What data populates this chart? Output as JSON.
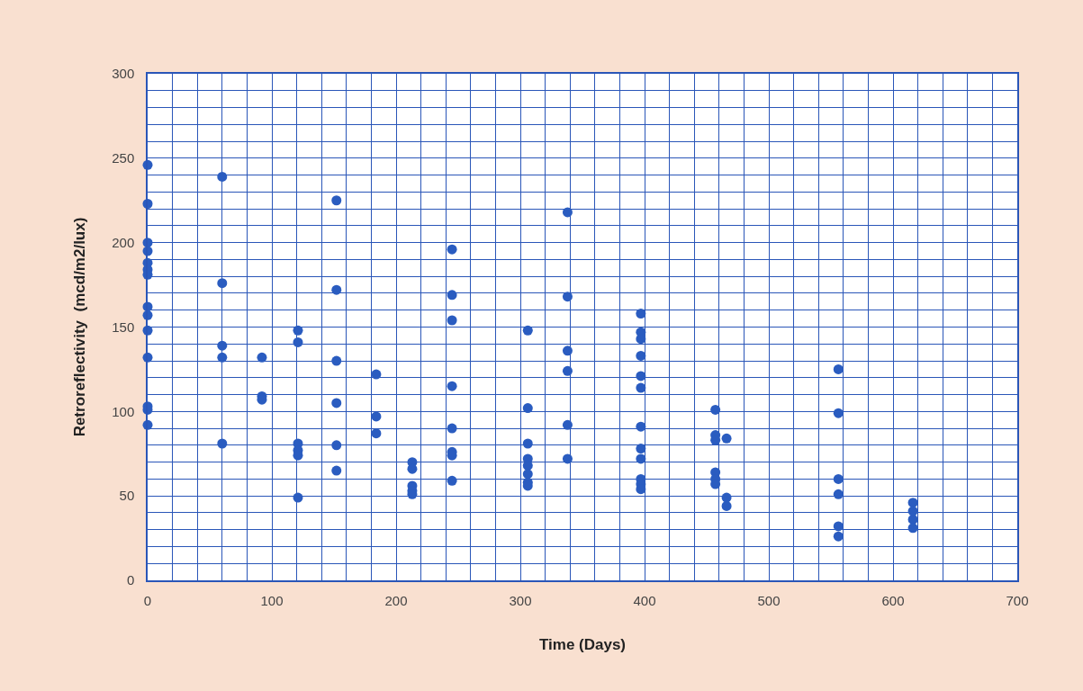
{
  "chart_data": {
    "type": "scatter",
    "xlabel": "Time (Days)",
    "ylabel": "Retroreflectivity  (mcd/m2/lux)",
    "x": [
      0,
      0,
      0,
      0,
      0,
      0,
      0,
      0,
      0,
      0,
      0,
      0,
      0,
      0,
      60,
      60,
      60,
      60,
      60,
      92,
      92,
      92,
      121,
      121,
      121,
      121,
      121,
      121,
      152,
      152,
      152,
      152,
      152,
      152,
      184,
      184,
      184,
      213,
      213,
      213,
      213,
      213,
      245,
      245,
      245,
      245,
      245,
      245,
      245,
      245,
      306,
      306,
      306,
      306,
      306,
      306,
      306,
      306,
      338,
      338,
      338,
      338,
      338,
      338,
      397,
      397,
      397,
      397,
      397,
      397,
      397,
      397,
      397,
      397,
      397,
      397,
      457,
      457,
      457,
      457,
      457,
      457,
      466,
      466,
      466,
      556,
      556,
      556,
      556,
      556,
      556,
      616,
      616,
      616,
      616
    ],
    "values": [
      246,
      223,
      200,
      195,
      188,
      184,
      181,
      162,
      157,
      148,
      132,
      103,
      101,
      92,
      239,
      176,
      139,
      132,
      81,
      132,
      109,
      107,
      148,
      141,
      81,
      77,
      74,
      49,
      225,
      172,
      130,
      105,
      80,
      65,
      122,
      97,
      87,
      70,
      66,
      56,
      53,
      51,
      196,
      169,
      154,
      115,
      90,
      76,
      74,
      59,
      148,
      102,
      81,
      72,
      68,
      63,
      58,
      56,
      218,
      168,
      136,
      124,
      92,
      72,
      158,
      147,
      143,
      133,
      121,
      114,
      91,
      78,
      72,
      60,
      57,
      54,
      101,
      86,
      83,
      64,
      60,
      57,
      84,
      49,
      44,
      125,
      99,
      60,
      51,
      32,
      26,
      46,
      41,
      36,
      31
    ],
    "color": "#2a5cc0",
    "marker": "circle",
    "xlim": [
      0,
      700
    ],
    "ylim": [
      0,
      300
    ],
    "xticks": [
      0,
      {
        "value": 20,
        "label": null
      },
      {
        "value": 40,
        "label": null
      },
      {
        "value": 60,
        "label": null
      },
      {
        "value": 80,
        "label": null
      },
      100,
      {
        "value": 120,
        "label": null
      },
      {
        "value": 140,
        "label": null
      },
      {
        "value": 160,
        "label": null
      },
      {
        "value": 180,
        "label": null
      },
      200,
      {
        "value": 220,
        "label": null
      },
      {
        "value": 240,
        "label": null
      },
      {
        "value": 260,
        "label": null
      },
      {
        "value": 280,
        "label": null
      },
      300,
      {
        "value": 320,
        "label": null
      },
      {
        "value": 340,
        "label": null
      },
      {
        "value": 360,
        "label": null
      },
      {
        "value": 380,
        "label": null
      },
      400,
      {
        "value": 420,
        "label": null
      },
      {
        "value": 440,
        "label": null
      },
      {
        "value": 460,
        "label": null
      },
      {
        "value": 480,
        "label": null
      },
      500,
      {
        "value": 520,
        "label": null
      },
      {
        "value": 540,
        "label": null
      },
      {
        "value": 560,
        "label": null
      },
      {
        "value": 580,
        "label": null
      },
      600,
      {
        "value": 620,
        "label": null
      },
      {
        "value": 640,
        "label": null
      },
      {
        "value": 660,
        "label": null
      },
      {
        "value": 680,
        "label": null
      },
      700
    ],
    "yticks": [
      0,
      {
        "value": 10,
        "label": null
      },
      {
        "value": 20,
        "label": null
      },
      {
        "value": 30,
        "label": null
      },
      {
        "value": 40,
        "label": null
      },
      50,
      {
        "value": 60,
        "label": null
      },
      {
        "value": 70,
        "label": null
      },
      {
        "value": 80,
        "label": null
      },
      {
        "value": 90,
        "label": null
      },
      100,
      {
        "value": 110,
        "label": null
      },
      {
        "value": 120,
        "label": null
      },
      {
        "value": 130,
        "label": null
      },
      {
        "value": 140,
        "label": null
      },
      150,
      {
        "value": 160,
        "label": null
      },
      {
        "value": 170,
        "label": null
      },
      {
        "value": 180,
        "label": null
      },
      {
        "value": 190,
        "label": null
      },
      200,
      {
        "value": 210,
        "label": null
      },
      {
        "value": 220,
        "label": null
      },
      {
        "value": 230,
        "label": null
      },
      {
        "value": 240,
        "label": null
      },
      250,
      {
        "value": 260,
        "label": null
      },
      {
        "value": 270,
        "label": null
      },
      {
        "value": 280,
        "label": null
      },
      {
        "value": 290,
        "label": null
      },
      300
    ],
    "grid": true
  }
}
